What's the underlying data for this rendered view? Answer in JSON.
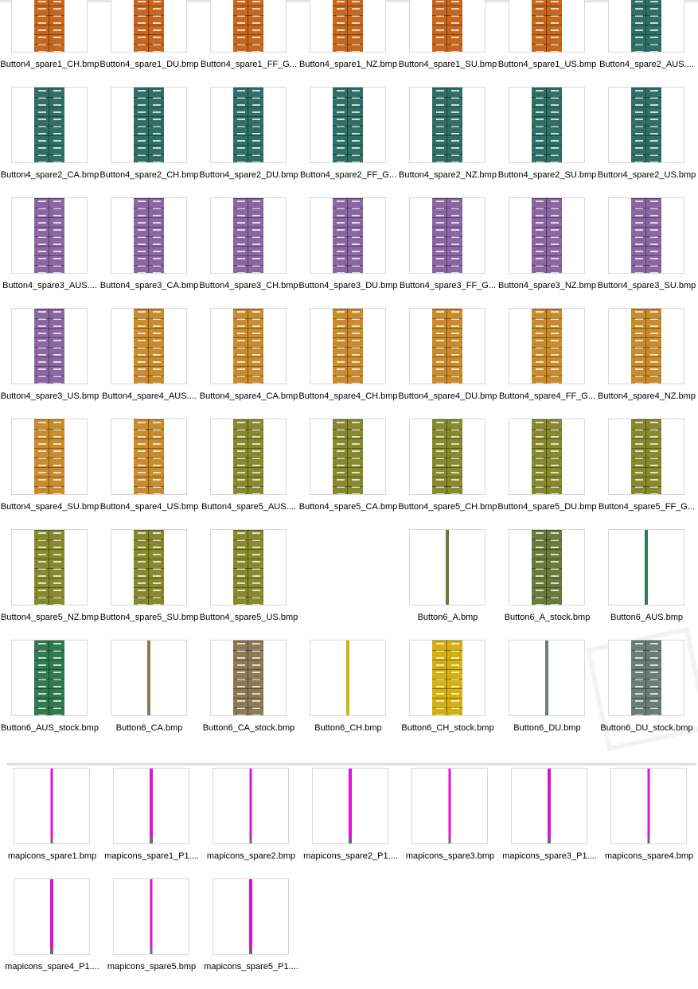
{
  "colors": {
    "orange": "#c8661c",
    "teal": "#2f6f66",
    "purple": "#8b66a3",
    "gold": "#c98b2c",
    "olive": "#878a2c",
    "green6": "#2f7a4e",
    "olive6": "#6b7a3a",
    "brown6": "#8c7a55",
    "yellow6": "#d6b010",
    "gray6": "#6b7d78",
    "magenta": "#e010d8"
  },
  "group1": [
    {
      "name": "Button4_spare1_CH.bmp",
      "color": "orange",
      "kind": "wide"
    },
    {
      "name": "Button4_spare1_DU.bmp",
      "color": "orange",
      "kind": "wide"
    },
    {
      "name": "Button4_spare1_FF_G...",
      "color": "orange",
      "kind": "wide"
    },
    {
      "name": "Button4_spare1_NZ.bmp",
      "color": "orange",
      "kind": "wide"
    },
    {
      "name": "Button4_spare1_SU.bmp",
      "color": "orange",
      "kind": "wide"
    },
    {
      "name": "Button4_spare1_US.bmp",
      "color": "orange",
      "kind": "wide"
    },
    {
      "name": "Button4_spare2_AUS....",
      "color": "teal",
      "kind": "wide"
    },
    {
      "name": "Button4_spare2_CA.bmp",
      "color": "teal",
      "kind": "wide"
    },
    {
      "name": "Button4_spare2_CH.bmp",
      "color": "teal",
      "kind": "wide"
    },
    {
      "name": "Button4_spare2_DU.bmp",
      "color": "teal",
      "kind": "wide"
    },
    {
      "name": "Button4_spare2_FF_G...",
      "color": "teal",
      "kind": "wide"
    },
    {
      "name": "Button4_spare2_NZ.bmp",
      "color": "teal",
      "kind": "wide"
    },
    {
      "name": "Button4_spare2_SU.bmp",
      "color": "teal",
      "kind": "wide"
    },
    {
      "name": "Button4_spare2_US.bmp",
      "color": "teal",
      "kind": "wide"
    },
    {
      "name": "Button4_spare3_AUS....",
      "color": "purple",
      "kind": "wide"
    },
    {
      "name": "Button4_spare3_CA.bmp",
      "color": "purple",
      "kind": "wide"
    },
    {
      "name": "Button4_spare3_CH.bmp",
      "color": "purple",
      "kind": "wide"
    },
    {
      "name": "Button4_spare3_DU.bmp",
      "color": "purple",
      "kind": "wide"
    },
    {
      "name": "Button4_spare3_FF_G...",
      "color": "purple",
      "kind": "wide"
    },
    {
      "name": "Button4_spare3_NZ.bmp",
      "color": "purple",
      "kind": "wide"
    },
    {
      "name": "Button4_spare3_SU.bmp",
      "color": "purple",
      "kind": "wide"
    },
    {
      "name": "Button4_spare3_US.bmp",
      "color": "purple",
      "kind": "wide"
    },
    {
      "name": "Button4_spare4_AUS....",
      "color": "gold",
      "kind": "wide"
    },
    {
      "name": "Button4_spare4_CA.bmp",
      "color": "gold",
      "kind": "wide"
    },
    {
      "name": "Button4_spare4_CH.bmp",
      "color": "gold",
      "kind": "wide"
    },
    {
      "name": "Button4_spare4_DU.bmp",
      "color": "gold",
      "kind": "wide"
    },
    {
      "name": "Button4_spare4_FF_G...",
      "color": "gold",
      "kind": "wide"
    },
    {
      "name": "Button4_spare4_NZ.bmp",
      "color": "gold",
      "kind": "wide"
    },
    {
      "name": "Button4_spare4_SU.bmp",
      "color": "gold",
      "kind": "wide"
    },
    {
      "name": "Button4_spare4_US.bmp",
      "color": "gold",
      "kind": "wide"
    },
    {
      "name": "Button4_spare5_AUS....",
      "color": "olive",
      "kind": "wide"
    },
    {
      "name": "Button4_spare5_CA.bmp",
      "color": "olive",
      "kind": "wide"
    },
    {
      "name": "Button4_spare5_CH.bmp",
      "color": "olive",
      "kind": "wide"
    },
    {
      "name": "Button4_spare5_DU.bmp",
      "color": "olive",
      "kind": "wide"
    },
    {
      "name": "Button4_spare5_FF_G...",
      "color": "olive",
      "kind": "wide"
    },
    {
      "name": "Button4_spare5_NZ.bmp",
      "color": "olive",
      "kind": "wide"
    },
    {
      "name": "Button4_spare5_SU.bmp",
      "color": "olive",
      "kind": "wide"
    },
    {
      "name": "Button4_spare5_US.bmp",
      "color": "olive",
      "kind": "wide"
    },
    null,
    {
      "name": "Button6_A.bmp",
      "color": "olive6",
      "kind": "narrow"
    },
    {
      "name": "Button6_A_stock.bmp",
      "color": "olive6",
      "kind": "wide"
    },
    {
      "name": "Button6_AUS.bmp",
      "color": "green6",
      "kind": "narrow"
    },
    {
      "name": "Button6_AUS_stock.bmp",
      "color": "green6",
      "kind": "wide"
    },
    {
      "name": "Button6_CA.bmp",
      "color": "brown6",
      "kind": "narrow"
    },
    {
      "name": "Button6_CA_stock.bmp",
      "color": "brown6",
      "kind": "wide"
    },
    {
      "name": "Button6_CH.bmp",
      "color": "yellow6",
      "kind": "narrow"
    },
    {
      "name": "Button6_CH_stock.bmp",
      "color": "yellow6",
      "kind": "wide"
    },
    {
      "name": "Button6_DU.bmp",
      "color": "gray6",
      "kind": "narrow"
    },
    {
      "name": "Button6_DU_stock.bmp",
      "color": "gray6",
      "kind": "wide"
    }
  ],
  "group2": [
    {
      "name": "mapicons_spare1.bmp",
      "color": "magenta",
      "kind": "magenta"
    },
    {
      "name": "mapicons_spare1_P1....",
      "color": "magenta",
      "kind": "magenta"
    },
    {
      "name": "mapicons_spare2.bmp",
      "color": "magenta",
      "kind": "magenta"
    },
    {
      "name": "mapicons_spare2_P1....",
      "color": "magenta",
      "kind": "magenta"
    },
    {
      "name": "mapicons_spare3.bmp",
      "color": "magenta",
      "kind": "magenta"
    },
    {
      "name": "mapicons_spare3_P1....",
      "color": "magenta",
      "kind": "magenta"
    },
    {
      "name": "mapicons_spare4.bmp",
      "color": "magenta",
      "kind": "magenta"
    },
    {
      "name": "mapicons_spare4_P1....",
      "color": "magenta",
      "kind": "magenta"
    },
    {
      "name": "mapicons_spare5.bmp",
      "color": "magenta",
      "kind": "magenta"
    },
    {
      "name": "mapicons_spare5_P1....",
      "color": "magenta",
      "kind": "magenta"
    }
  ]
}
